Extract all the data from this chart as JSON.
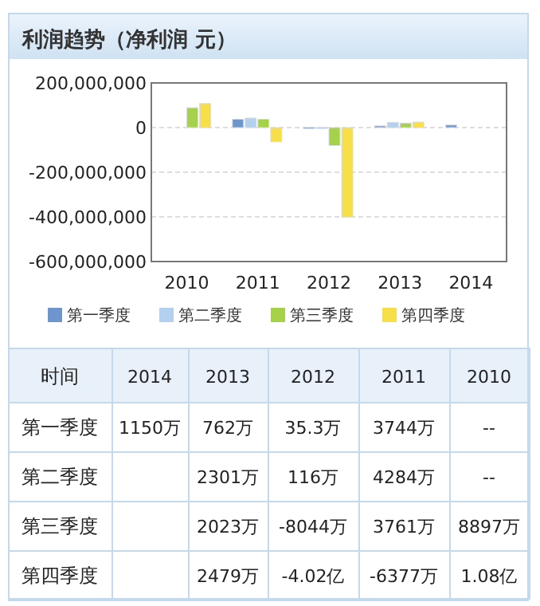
{
  "chart_data": {
    "type": "bar",
    "title": "利润趋势（净利润 元）",
    "categories": [
      "2010",
      "2011",
      "2012",
      "2013",
      "2014"
    ],
    "series": [
      {
        "name": "第一季度",
        "color": "#6f96cc",
        "values": [
          null,
          37440000,
          353000,
          7620000,
          11500000
        ]
      },
      {
        "name": "第二季度",
        "color": "#b3d0ee",
        "values": [
          null,
          42840000,
          1160000,
          23010000,
          null
        ]
      },
      {
        "name": "第三季度",
        "color": "#a6d14a",
        "values": [
          88970000,
          37610000,
          -80440000,
          20230000,
          null
        ]
      },
      {
        "name": "第四季度",
        "color": "#f7df4a",
        "values": [
          108000000,
          -63770000,
          -402000000,
          24790000,
          null
        ]
      }
    ],
    "ylim": [
      -600000000,
      200000000
    ],
    "yticks": [
      {
        "value": 200000000,
        "label": "200,000,000"
      },
      0,
      {
        "value": -200000000,
        "label": "-200,000,000"
      },
      {
        "value": -400000000,
        "label": "-400,000,000"
      },
      {
        "value": -600000000,
        "label": "-600,000,000"
      }
    ],
    "grid": "y",
    "legend": "bottom",
    "annotations": [
      "时间",
      "1150万",
      "762万",
      "35.3万",
      "3744万",
      "--",
      "2301万",
      "116万",
      "4284万",
      "--",
      "2023万",
      "-8044万",
      "3761万",
      "8897万",
      "2479万",
      "-4.02亿",
      "-6377万",
      "1.08亿"
    ]
  }
}
